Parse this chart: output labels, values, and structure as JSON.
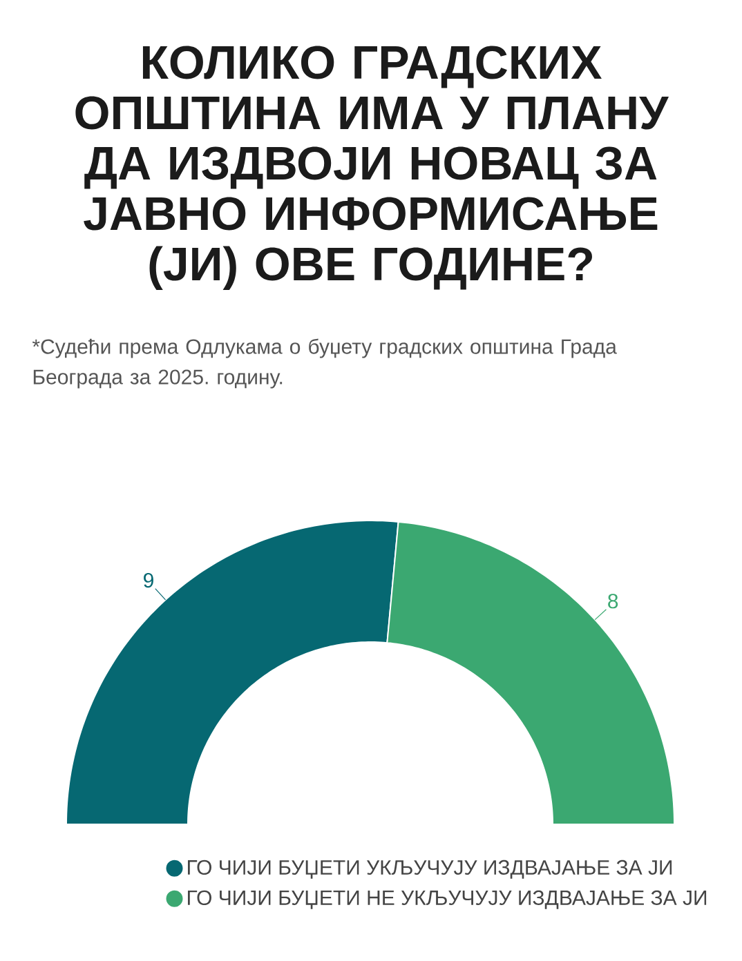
{
  "chart_data": {
    "type": "donut",
    "title": "КОЛИКО ГРАДСКИХ ОПШТИНА ИМА У ПЛАНУ ДА ИЗДВОЈИ НОВАЦ ЗА ЈАВНО ИНФОРМИСАЊЕ (ЈИ) ОВЕ ГОДИНЕ?",
    "subtitle": "*Судећи према Одлукама о буџету градских општина Града Београда за 2025. годину.",
    "categories": [
      "ГО ЧИЈИ БУЏЕТИ УКЉУЧУЈУ ИЗДВАЈАЊЕ ЗА ЈИ",
      "ГО ЧИЈИ БУЏЕТИ НЕ УКЉУЧУЈУ ИЗДВАЈАЊЕ ЗА ЈИ"
    ],
    "values": [
      9,
      8
    ],
    "colors": [
      "#066872",
      "#3ba871"
    ],
    "data_labels": true,
    "legend": "bottom right"
  }
}
